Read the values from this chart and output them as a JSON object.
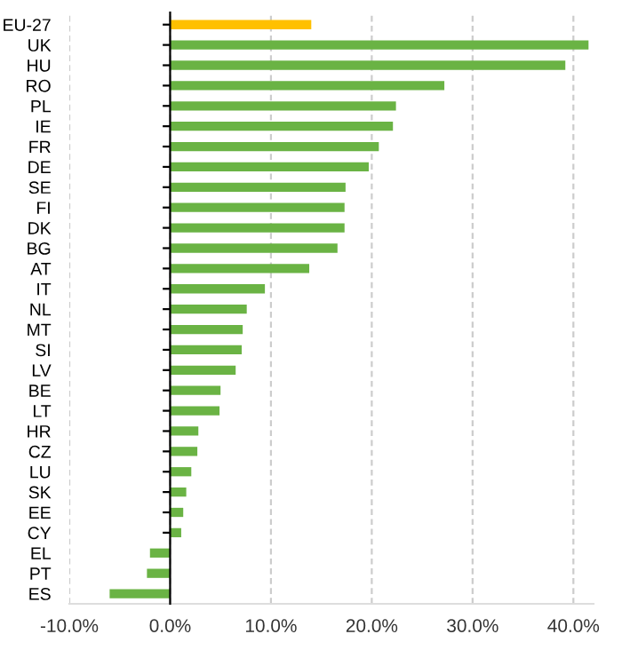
{
  "chart_data": {
    "type": "bar",
    "orientation": "horizontal",
    "categories": [
      "EU-27",
      "UK",
      "HU",
      "RO",
      "PL",
      "IE",
      "FR",
      "DE",
      "SE",
      "FI",
      "DK",
      "BG",
      "AT",
      "IT",
      "NL",
      "MT",
      "SI",
      "LV",
      "BE",
      "LT",
      "HR",
      "CZ",
      "LU",
      "SK",
      "EE",
      "CY",
      "EL",
      "PT",
      "ES"
    ],
    "values": [
      14.0,
      41.5,
      39.2,
      27.2,
      22.4,
      22.1,
      20.7,
      19.7,
      17.4,
      17.3,
      17.3,
      16.6,
      13.8,
      9.4,
      7.6,
      7.2,
      7.1,
      6.5,
      5.0,
      4.9,
      2.8,
      2.7,
      2.1,
      1.6,
      1.3,
      1.1,
      -2.0,
      -2.3,
      -6.0
    ],
    "colors": [
      "#ffc000",
      "#6ab344",
      "#6ab344",
      "#6ab344",
      "#6ab344",
      "#6ab344",
      "#6ab344",
      "#6ab344",
      "#6ab344",
      "#6ab344",
      "#6ab344",
      "#6ab344",
      "#6ab344",
      "#6ab344",
      "#6ab344",
      "#6ab344",
      "#6ab344",
      "#6ab344",
      "#6ab344",
      "#6ab344",
      "#6ab344",
      "#6ab344",
      "#6ab344",
      "#6ab344",
      "#6ab344",
      "#6ab344",
      "#6ab344",
      "#6ab344",
      "#6ab344"
    ],
    "xlim": [
      -10,
      42
    ],
    "xticks": [
      {
        "value": -10,
        "label": "-10.0%"
      },
      {
        "value": 0,
        "label": "0.0%"
      },
      {
        "value": 10,
        "label": "10.0%"
      },
      {
        "value": 20,
        "label": "20.0%"
      },
      {
        "value": 30,
        "label": "30.0%"
      },
      {
        "value": 40,
        "label": "40.0%"
      }
    ],
    "grid": "x",
    "legend": false
  }
}
